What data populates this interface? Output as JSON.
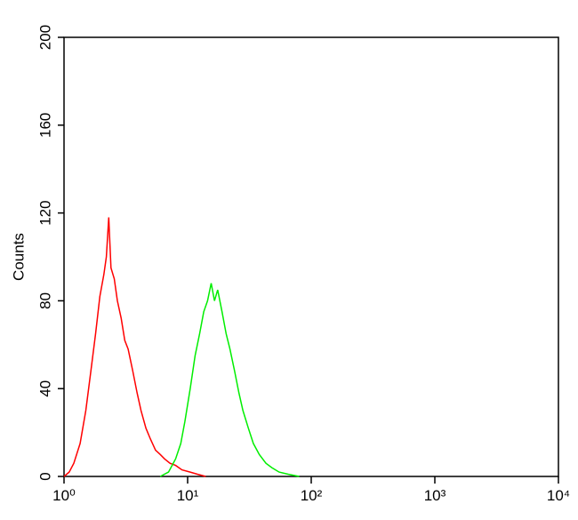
{
  "chart_data": {
    "type": "line",
    "ylabel": "Counts",
    "xscale": "log",
    "xlim": [
      1,
      10000
    ],
    "xticks": [
      {
        "value": 1,
        "label": "10⁰"
      },
      {
        "value": 10,
        "label": "10¹"
      },
      {
        "value": 100,
        "label": "10²"
      },
      {
        "value": 1000,
        "label": "10³"
      },
      {
        "value": 10000,
        "label": "10⁴"
      }
    ],
    "ylim": [
      0,
      200
    ],
    "yticks": [
      0,
      40,
      80,
      120,
      160,
      200
    ],
    "series": [
      {
        "color": "#ff0000",
        "x": [
          1.0,
          1.1,
          1.2,
          1.35,
          1.5,
          1.65,
          1.8,
          1.95,
          2.1,
          2.2,
          2.3,
          2.4,
          2.55,
          2.7,
          2.9,
          3.1,
          3.3,
          3.6,
          3.9,
          4.2,
          4.6,
          5.0,
          5.5,
          6.0,
          6.5,
          7.2,
          8.0,
          9.0,
          10.5,
          12,
          14
        ],
        "values": [
          0,
          2,
          6,
          15,
          30,
          48,
          65,
          82,
          92,
          100,
          118,
          95,
          90,
          80,
          72,
          62,
          58,
          48,
          38,
          30,
          22,
          17,
          12,
          10,
          8,
          6,
          5,
          3,
          2,
          1,
          0
        ]
      },
      {
        "color": "#00ee00",
        "x": [
          6.0,
          7.0,
          8.0,
          8.8,
          9.5,
          10.5,
          11.5,
          12.5,
          13.5,
          14.5,
          15.5,
          16.5,
          17.5,
          19,
          20.5,
          22,
          24,
          26,
          28,
          31,
          34,
          38,
          43,
          48,
          55,
          65,
          80
        ],
        "values": [
          0,
          2,
          8,
          15,
          25,
          40,
          55,
          65,
          75,
          80,
          88,
          80,
          85,
          75,
          65,
          58,
          48,
          38,
          30,
          22,
          15,
          10,
          6,
          4,
          2,
          1,
          0
        ]
      }
    ]
  }
}
